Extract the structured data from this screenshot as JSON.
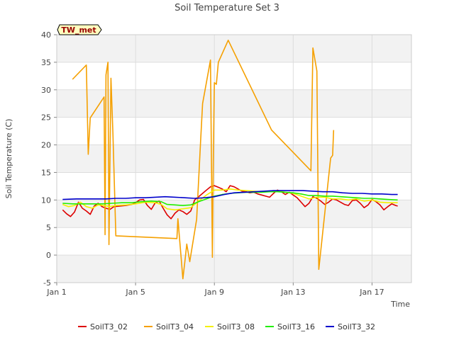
{
  "chart_data": {
    "type": "line",
    "title": "Soil Temperature Set 3",
    "xlabel": "Time",
    "ylabel": "Soil Temperature (C)",
    "site_label": "TW_met",
    "xlim": [
      1,
      19
    ],
    "ylim": [
      -5,
      40
    ],
    "x_ticks": [
      {
        "x": 1,
        "label": "Jan 1"
      },
      {
        "x": 5,
        "label": "Jan 5"
      },
      {
        "x": 9,
        "label": "Jan 9"
      },
      {
        "x": 13,
        "label": "Jan 13"
      },
      {
        "x": 17,
        "label": "Jan 17"
      }
    ],
    "y_ticks": [
      -5,
      0,
      5,
      10,
      15,
      20,
      25,
      30,
      35,
      40
    ],
    "grid": true,
    "legend_position": "bottom",
    "series": [
      {
        "name": "SoilT3_02",
        "color": "#dd0000",
        "points": [
          [
            1.3,
            8.2
          ],
          [
            1.5,
            7.5
          ],
          [
            1.7,
            7.0
          ],
          [
            1.9,
            7.8
          ],
          [
            2.1,
            9.6
          ],
          [
            2.3,
            8.5
          ],
          [
            2.5,
            8.0
          ],
          [
            2.7,
            7.4
          ],
          [
            2.9,
            8.9
          ],
          [
            3.1,
            9.4
          ],
          [
            3.3,
            8.8
          ],
          [
            3.5,
            8.5
          ],
          [
            3.7,
            8.3
          ],
          [
            3.9,
            8.8
          ],
          [
            4.2,
            8.9
          ],
          [
            4.5,
            9.0
          ],
          [
            4.8,
            9.2
          ],
          [
            5.0,
            9.5
          ],
          [
            5.2,
            10.0
          ],
          [
            5.4,
            10.1
          ],
          [
            5.6,
            9.0
          ],
          [
            5.8,
            8.3
          ],
          [
            6.0,
            9.5
          ],
          [
            6.2,
            9.8
          ],
          [
            6.4,
            8.5
          ],
          [
            6.6,
            7.3
          ],
          [
            6.8,
            6.6
          ],
          [
            7.0,
            7.6
          ],
          [
            7.2,
            8.2
          ],
          [
            7.4,
            7.9
          ],
          [
            7.6,
            7.4
          ],
          [
            7.8,
            8.0
          ],
          [
            8.0,
            10.0
          ],
          [
            8.2,
            10.6
          ],
          [
            8.4,
            11.2
          ],
          [
            8.6,
            11.8
          ],
          [
            8.8,
            12.4
          ],
          [
            9.0,
            12.6
          ],
          [
            9.2,
            12.3
          ],
          [
            9.4,
            12.0
          ],
          [
            9.6,
            11.5
          ],
          [
            9.8,
            12.6
          ],
          [
            10.0,
            12.4
          ],
          [
            10.2,
            12.0
          ],
          [
            10.4,
            11.6
          ],
          [
            10.6,
            11.5
          ],
          [
            10.8,
            11.3
          ],
          [
            11.0,
            11.4
          ],
          [
            11.2,
            11.1
          ],
          [
            11.4,
            10.9
          ],
          [
            11.6,
            10.7
          ],
          [
            11.8,
            10.5
          ],
          [
            12.0,
            11.2
          ],
          [
            12.2,
            11.8
          ],
          [
            12.4,
            11.5
          ],
          [
            12.6,
            11.0
          ],
          [
            12.8,
            11.4
          ],
          [
            13.0,
            10.9
          ],
          [
            13.2,
            10.4
          ],
          [
            13.4,
            9.6
          ],
          [
            13.6,
            8.8
          ],
          [
            13.8,
            9.4
          ],
          [
            14.0,
            10.6
          ],
          [
            14.2,
            10.3
          ],
          [
            14.4,
            9.8
          ],
          [
            14.6,
            9.2
          ],
          [
            14.8,
            9.6
          ],
          [
            15.0,
            10.2
          ],
          [
            15.2,
            10.0
          ],
          [
            15.4,
            9.6
          ],
          [
            15.6,
            9.2
          ],
          [
            15.8,
            9.0
          ],
          [
            16.0,
            9.9
          ],
          [
            16.2,
            10.0
          ],
          [
            16.4,
            9.4
          ],
          [
            16.6,
            8.6
          ],
          [
            16.8,
            9.1
          ],
          [
            17.0,
            10.1
          ],
          [
            17.2,
            9.7
          ],
          [
            17.4,
            9.1
          ],
          [
            17.6,
            8.2
          ],
          [
            17.8,
            8.8
          ],
          [
            18.0,
            9.3
          ],
          [
            18.2,
            9.0
          ],
          [
            18.3,
            8.9
          ]
        ]
      },
      {
        "name": "SoilT3_04",
        "color": "#f5a000",
        "points": [
          [
            1.8,
            31.9
          ],
          [
            2.5,
            34.5
          ],
          [
            2.6,
            18.3
          ],
          [
            2.7,
            24.9
          ],
          [
            3.4,
            28.7
          ],
          [
            3.45,
            3.7
          ],
          [
            3.5,
            32.7
          ],
          [
            3.6,
            35.0
          ],
          [
            3.65,
            1.9
          ],
          [
            3.75,
            32.1
          ],
          [
            3.85,
            22.0
          ],
          [
            4.0,
            3.5
          ],
          [
            7.1,
            3.0
          ],
          [
            7.15,
            6.6
          ],
          [
            7.4,
            -4.3
          ],
          [
            7.5,
            -1.2
          ],
          [
            7.6,
            2.0
          ],
          [
            7.75,
            -1.2
          ],
          [
            8.1,
            6.5
          ],
          [
            8.3,
            20.7
          ],
          [
            8.4,
            27.5
          ],
          [
            8.8,
            35.4
          ],
          [
            8.9,
            -0.4
          ],
          [
            8.95,
            18.7
          ],
          [
            9.0,
            31.3
          ],
          [
            9.1,
            31.0
          ],
          [
            9.2,
            35.0
          ],
          [
            9.7,
            39.0
          ],
          [
            11.9,
            22.7
          ],
          [
            13.9,
            15.3
          ],
          [
            14.0,
            37.6
          ],
          [
            14.2,
            33.4
          ],
          [
            14.3,
            -2.6
          ],
          [
            14.9,
            17.6
          ],
          [
            15.0,
            18.1
          ],
          [
            15.05,
            22.7
          ]
        ]
      },
      {
        "name": "SoilT3_08",
        "color": "#f5f000",
        "points": [
          [
            1.3,
            9.2
          ],
          [
            1.6,
            8.8
          ],
          [
            1.9,
            9.0
          ],
          [
            2.2,
            9.6
          ],
          [
            2.5,
            8.8
          ],
          [
            2.8,
            8.5
          ],
          [
            3.1,
            9.1
          ],
          [
            3.4,
            9.0
          ],
          [
            3.7,
            8.8
          ],
          [
            4.0,
            9.0
          ],
          [
            4.5,
            9.1
          ],
          [
            5.0,
            9.3
          ],
          [
            5.5,
            9.6
          ],
          [
            6.0,
            9.5
          ],
          [
            6.3,
            9.2
          ],
          [
            6.6,
            8.4
          ],
          [
            7.0,
            8.2
          ],
          [
            7.4,
            8.4
          ],
          [
            7.8,
            8.6
          ],
          [
            8.2,
            9.8
          ],
          [
            8.6,
            10.9
          ],
          [
            9.0,
            11.8
          ],
          [
            9.4,
            11.8
          ],
          [
            9.8,
            12.0
          ],
          [
            10.2,
            11.8
          ],
          [
            10.6,
            11.7
          ],
          [
            11.0,
            11.6
          ],
          [
            11.4,
            11.5
          ],
          [
            11.8,
            11.6
          ],
          [
            12.2,
            11.7
          ],
          [
            12.6,
            11.4
          ],
          [
            13.0,
            11.2
          ],
          [
            13.4,
            10.7
          ],
          [
            13.8,
            10.2
          ],
          [
            14.2,
            10.5
          ],
          [
            14.6,
            10.5
          ],
          [
            15.0,
            10.2
          ],
          [
            15.4,
            10.2
          ],
          [
            15.8,
            10.0
          ],
          [
            16.2,
            10.2
          ],
          [
            16.6,
            9.8
          ],
          [
            17.0,
            10.0
          ],
          [
            17.4,
            9.6
          ],
          [
            17.8,
            9.5
          ],
          [
            18.2,
            9.5
          ],
          [
            18.3,
            9.5
          ]
        ]
      },
      {
        "name": "SoilT3_16",
        "color": "#22ee00",
        "points": [
          [
            1.3,
            9.4
          ],
          [
            1.8,
            9.3
          ],
          [
            2.3,
            9.3
          ],
          [
            2.8,
            9.3
          ],
          [
            3.3,
            9.3
          ],
          [
            3.8,
            9.4
          ],
          [
            4.3,
            9.5
          ],
          [
            4.8,
            9.5
          ],
          [
            5.3,
            9.7
          ],
          [
            5.8,
            9.8
          ],
          [
            6.3,
            9.7
          ],
          [
            6.6,
            9.2
          ],
          [
            7.0,
            9.1
          ],
          [
            7.4,
            9.0
          ],
          [
            7.8,
            9.1
          ],
          [
            8.2,
            9.7
          ],
          [
            8.6,
            10.2
          ],
          [
            9.0,
            10.7
          ],
          [
            9.4,
            11.0
          ],
          [
            9.8,
            11.2
          ],
          [
            10.2,
            11.3
          ],
          [
            10.6,
            11.4
          ],
          [
            11.0,
            11.4
          ],
          [
            11.4,
            11.4
          ],
          [
            11.8,
            11.5
          ],
          [
            12.2,
            11.5
          ],
          [
            12.6,
            11.4
          ],
          [
            13.0,
            11.3
          ],
          [
            13.4,
            11.1
          ],
          [
            13.8,
            10.8
          ],
          [
            14.2,
            10.8
          ],
          [
            14.6,
            10.7
          ],
          [
            15.0,
            10.7
          ],
          [
            15.4,
            10.6
          ],
          [
            15.8,
            10.5
          ],
          [
            16.2,
            10.4
          ],
          [
            16.6,
            10.3
          ],
          [
            17.0,
            10.3
          ],
          [
            17.4,
            10.2
          ],
          [
            17.8,
            10.1
          ],
          [
            18.3,
            10.0
          ]
        ]
      },
      {
        "name": "SoilT3_32",
        "color": "#0000cc",
        "points": [
          [
            1.3,
            10.1
          ],
          [
            2.0,
            10.2
          ],
          [
            2.5,
            10.2
          ],
          [
            3.0,
            10.2
          ],
          [
            3.5,
            10.2
          ],
          [
            4.0,
            10.3
          ],
          [
            4.5,
            10.3
          ],
          [
            5.0,
            10.4
          ],
          [
            5.5,
            10.4
          ],
          [
            6.0,
            10.5
          ],
          [
            6.5,
            10.6
          ],
          [
            7.0,
            10.5
          ],
          [
            7.5,
            10.4
          ],
          [
            8.0,
            10.3
          ],
          [
            8.5,
            10.4
          ],
          [
            9.0,
            10.6
          ],
          [
            9.5,
            11.0
          ],
          [
            10.0,
            11.3
          ],
          [
            10.5,
            11.4
          ],
          [
            11.0,
            11.5
          ],
          [
            11.5,
            11.6
          ],
          [
            12.0,
            11.7
          ],
          [
            12.5,
            11.7
          ],
          [
            13.0,
            11.7
          ],
          [
            13.5,
            11.7
          ],
          [
            14.0,
            11.6
          ],
          [
            14.5,
            11.5
          ],
          [
            15.0,
            11.5
          ],
          [
            15.5,
            11.3
          ],
          [
            16.0,
            11.2
          ],
          [
            16.5,
            11.2
          ],
          [
            17.0,
            11.1
          ],
          [
            17.5,
            11.1
          ],
          [
            18.0,
            11.0
          ],
          [
            18.3,
            11.0
          ]
        ]
      }
    ]
  }
}
